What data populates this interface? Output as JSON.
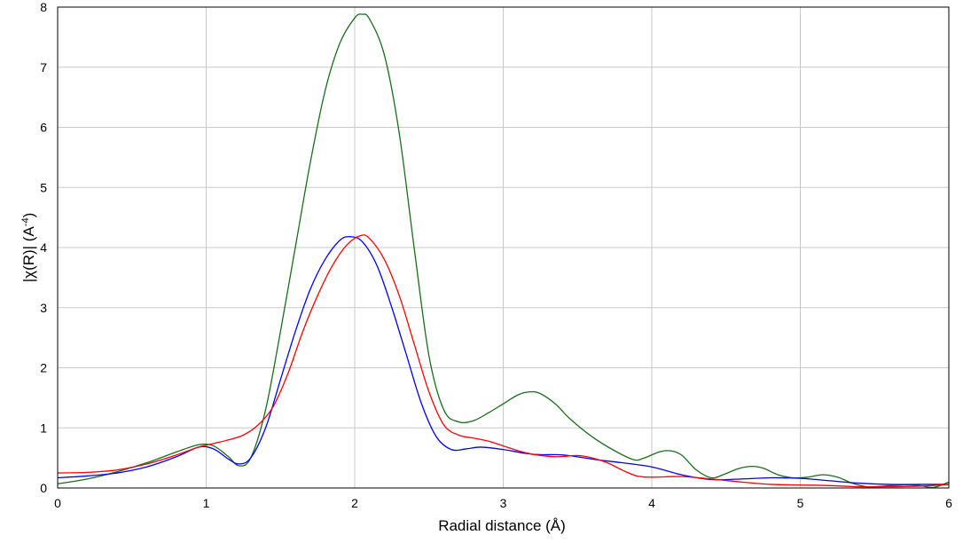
{
  "chart_data": {
    "type": "line",
    "title": "",
    "xlabel": "Radial distance    (Å)",
    "ylabel_main": "|χ(R)|    (A",
    "ylabel_sup": "-4",
    "ylabel_close": ")",
    "xlim": [
      0,
      6
    ],
    "ylim": [
      0,
      8
    ],
    "xticks": [
      "0",
      "1",
      "2",
      "3",
      "4",
      "5",
      "6"
    ],
    "yticks": [
      "0",
      "1",
      "2",
      "3",
      "4",
      "5",
      "6",
      "7",
      "8"
    ],
    "grid": true,
    "series": [
      {
        "color": "#1a6e1a",
        "points": [
          [
            0,
            0.07
          ],
          [
            0.2,
            0.15
          ],
          [
            0.4,
            0.27
          ],
          [
            0.6,
            0.42
          ],
          [
            0.8,
            0.6
          ],
          [
            0.95,
            0.72
          ],
          [
            1.05,
            0.7
          ],
          [
            1.15,
            0.52
          ],
          [
            1.22,
            0.37
          ],
          [
            1.3,
            0.5
          ],
          [
            1.4,
            1.3
          ],
          [
            1.5,
            2.6
          ],
          [
            1.6,
            4.0
          ],
          [
            1.7,
            5.4
          ],
          [
            1.8,
            6.6
          ],
          [
            1.9,
            7.4
          ],
          [
            2.0,
            7.82
          ],
          [
            2.05,
            7.88
          ],
          [
            2.1,
            7.8
          ],
          [
            2.2,
            7.2
          ],
          [
            2.3,
            5.9
          ],
          [
            2.4,
            4.0
          ],
          [
            2.5,
            2.2
          ],
          [
            2.6,
            1.3
          ],
          [
            2.7,
            1.1
          ],
          [
            2.8,
            1.12
          ],
          [
            2.9,
            1.25
          ],
          [
            3.0,
            1.4
          ],
          [
            3.1,
            1.55
          ],
          [
            3.18,
            1.6
          ],
          [
            3.25,
            1.57
          ],
          [
            3.35,
            1.4
          ],
          [
            3.45,
            1.15
          ],
          [
            3.6,
            0.85
          ],
          [
            3.75,
            0.62
          ],
          [
            3.88,
            0.47
          ],
          [
            3.95,
            0.5
          ],
          [
            4.05,
            0.6
          ],
          [
            4.12,
            0.62
          ],
          [
            4.2,
            0.55
          ],
          [
            4.3,
            0.3
          ],
          [
            4.4,
            0.17
          ],
          [
            4.48,
            0.22
          ],
          [
            4.58,
            0.32
          ],
          [
            4.67,
            0.36
          ],
          [
            4.75,
            0.33
          ],
          [
            4.85,
            0.22
          ],
          [
            4.95,
            0.17
          ],
          [
            5.05,
            0.18
          ],
          [
            5.15,
            0.22
          ],
          [
            5.25,
            0.18
          ],
          [
            5.35,
            0.08
          ],
          [
            5.45,
            0.02
          ],
          [
            5.55,
            0.03
          ],
          [
            5.7,
            0.05
          ],
          [
            5.8,
            0.04
          ],
          [
            5.9,
            0.01
          ],
          [
            6.0,
            0.1
          ]
        ]
      },
      {
        "color": "#0000ff",
        "points": [
          [
            0,
            0.17
          ],
          [
            0.2,
            0.2
          ],
          [
            0.4,
            0.25
          ],
          [
            0.6,
            0.35
          ],
          [
            0.8,
            0.52
          ],
          [
            0.95,
            0.68
          ],
          [
            1.05,
            0.65
          ],
          [
            1.15,
            0.48
          ],
          [
            1.22,
            0.4
          ],
          [
            1.3,
            0.5
          ],
          [
            1.4,
            1.0
          ],
          [
            1.5,
            1.8
          ],
          [
            1.6,
            2.6
          ],
          [
            1.7,
            3.3
          ],
          [
            1.8,
            3.8
          ],
          [
            1.9,
            4.12
          ],
          [
            1.97,
            4.18
          ],
          [
            2.05,
            4.1
          ],
          [
            2.15,
            3.7
          ],
          [
            2.25,
            3.0
          ],
          [
            2.35,
            2.2
          ],
          [
            2.45,
            1.4
          ],
          [
            2.55,
            0.85
          ],
          [
            2.65,
            0.64
          ],
          [
            2.75,
            0.65
          ],
          [
            2.85,
            0.68
          ],
          [
            3.0,
            0.64
          ],
          [
            3.2,
            0.56
          ],
          [
            3.4,
            0.55
          ],
          [
            3.6,
            0.48
          ],
          [
            3.8,
            0.42
          ],
          [
            4.0,
            0.35
          ],
          [
            4.2,
            0.22
          ],
          [
            4.4,
            0.14
          ],
          [
            4.6,
            0.15
          ],
          [
            4.8,
            0.17
          ],
          [
            5.0,
            0.16
          ],
          [
            5.2,
            0.12
          ],
          [
            5.4,
            0.08
          ],
          [
            5.6,
            0.06
          ],
          [
            5.8,
            0.06
          ],
          [
            6.0,
            0.06
          ]
        ]
      },
      {
        "color": "#ff0000",
        "points": [
          [
            0,
            0.25
          ],
          [
            0.2,
            0.26
          ],
          [
            0.4,
            0.3
          ],
          [
            0.6,
            0.4
          ],
          [
            0.8,
            0.55
          ],
          [
            0.95,
            0.68
          ],
          [
            1.05,
            0.74
          ],
          [
            1.15,
            0.8
          ],
          [
            1.25,
            0.88
          ],
          [
            1.35,
            1.05
          ],
          [
            1.45,
            1.35
          ],
          [
            1.55,
            1.9
          ],
          [
            1.65,
            2.6
          ],
          [
            1.75,
            3.2
          ],
          [
            1.85,
            3.7
          ],
          [
            1.95,
            4.05
          ],
          [
            2.04,
            4.2
          ],
          [
            2.1,
            4.15
          ],
          [
            2.2,
            3.8
          ],
          [
            2.3,
            3.2
          ],
          [
            2.4,
            2.4
          ],
          [
            2.5,
            1.6
          ],
          [
            2.6,
            1.05
          ],
          [
            2.7,
            0.88
          ],
          [
            2.8,
            0.83
          ],
          [
            2.9,
            0.78
          ],
          [
            3.0,
            0.7
          ],
          [
            3.1,
            0.62
          ],
          [
            3.2,
            0.56
          ],
          [
            3.35,
            0.52
          ],
          [
            3.5,
            0.54
          ],
          [
            3.6,
            0.5
          ],
          [
            3.7,
            0.42
          ],
          [
            3.8,
            0.3
          ],
          [
            3.9,
            0.2
          ],
          [
            4.0,
            0.18
          ],
          [
            4.2,
            0.19
          ],
          [
            4.4,
            0.15
          ],
          [
            4.6,
            0.1
          ],
          [
            4.8,
            0.06
          ],
          [
            5.0,
            0.05
          ],
          [
            5.2,
            0.04
          ],
          [
            5.4,
            0.02
          ],
          [
            5.6,
            0.02
          ],
          [
            5.8,
            0.03
          ],
          [
            6.0,
            0.06
          ]
        ]
      }
    ]
  }
}
